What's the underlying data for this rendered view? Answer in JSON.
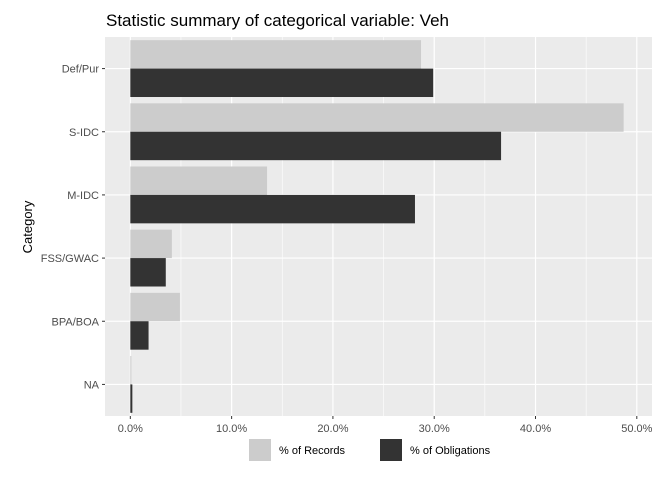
{
  "chart_data": {
    "type": "bar",
    "orientation": "horizontal",
    "title": "Statistic summary of categorical variable:  Veh",
    "ylabel": "Category",
    "xlabel": "",
    "categories": [
      "Def/Pur",
      "S-IDC",
      "M-IDC",
      "FSS/GWAC",
      "BPA/BOA",
      "NA"
    ],
    "series": [
      {
        "name": "% of Records",
        "color": "#cccccc",
        "values": [
          28.7,
          48.7,
          13.5,
          4.1,
          4.9,
          0.1
        ]
      },
      {
        "name": "% of Obligations",
        "color": "#333333",
        "values": [
          29.9,
          36.6,
          28.1,
          3.5,
          1.8,
          0.2
        ]
      }
    ],
    "xlim": [
      -2.5,
      51.5
    ],
    "xticks": [
      0,
      10,
      20,
      30,
      40,
      50
    ],
    "xtick_labels": [
      "0.0%",
      "10.0%",
      "20.0%",
      "30.0%",
      "40.0%",
      "50.0%"
    ],
    "grid": true,
    "panel_background": "#ebebeb",
    "legend_position": "bottom"
  }
}
